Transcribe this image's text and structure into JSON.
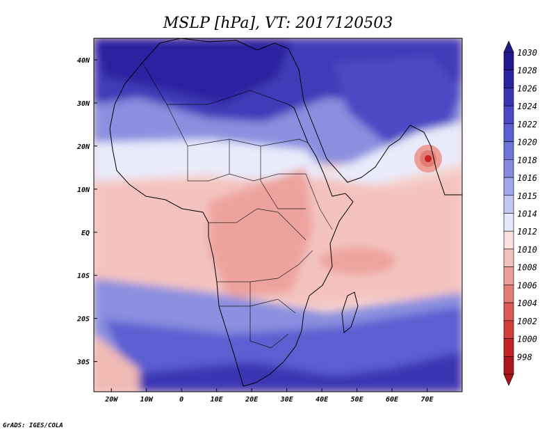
{
  "title": "MSLP [hPa], VT: 2017120503",
  "credit": "GrADS: IGES/COLA",
  "map": {
    "lon_range": [
      -25,
      80
    ],
    "lat_range": [
      -37,
      45
    ],
    "x_ticks": [
      "20W",
      "10W",
      "0",
      "10E",
      "20E",
      "30E",
      "40E",
      "50E",
      "60E",
      "70E"
    ],
    "x_tick_lons": [
      -20,
      -10,
      0,
      10,
      20,
      30,
      40,
      50,
      60,
      70
    ],
    "y_ticks": [
      "40N",
      "30N",
      "20N",
      "10N",
      "EQ",
      "10S",
      "20S",
      "30S"
    ],
    "y_tick_lats": [
      40,
      30,
      20,
      10,
      0,
      -10,
      -20,
      -30
    ]
  },
  "colorbar": {
    "levels": [
      "1030",
      "1028",
      "1026",
      "1024",
      "1022",
      "1020",
      "1018",
      "1016",
      "1015",
      "1014",
      "1012",
      "1010",
      "1008",
      "1006",
      "1004",
      "1002",
      "1000",
      "998"
    ],
    "colors": [
      "#221a8c",
      "#2a23a0",
      "#3a34b4",
      "#4a48c4",
      "#5b5fd0",
      "#6e74d8",
      "#8589e0",
      "#a0a6ea",
      "#c4c8f4",
      "#e6e8fb",
      "#fbe2e0",
      "#f4c0bc",
      "#ed9e98",
      "#e47c76",
      "#dc5a56",
      "#d43c3a",
      "#c52426",
      "#ab151b"
    ]
  }
}
